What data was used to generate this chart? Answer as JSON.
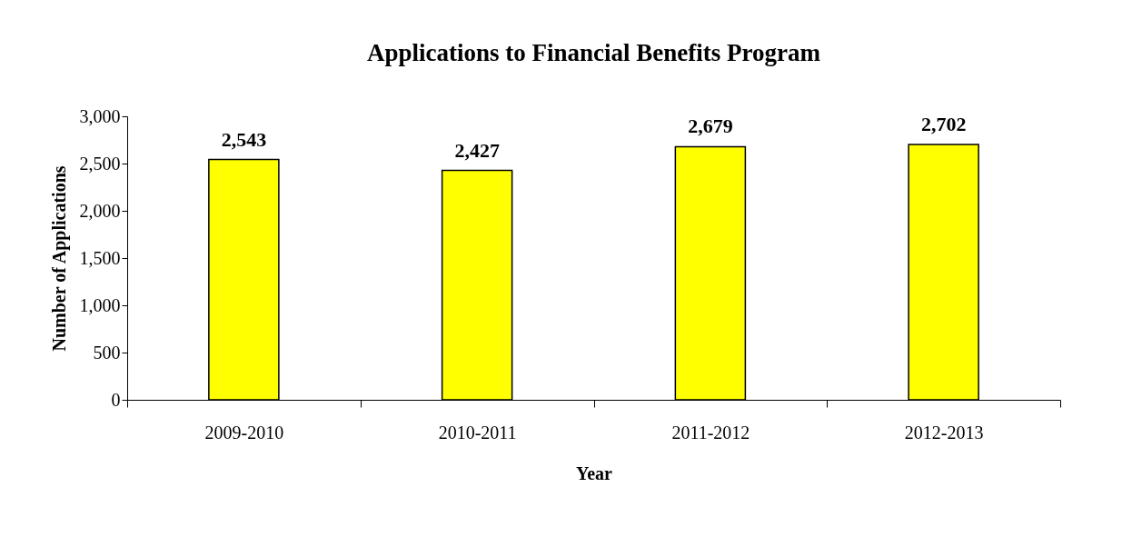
{
  "chart_data": {
    "type": "bar",
    "title": "Applications to Financial Benefits Program",
    "xlabel": "Year",
    "ylabel": "Number of Applications",
    "categories": [
      "2009-2010",
      "2010-2011",
      "2011-2012",
      "2012-2013"
    ],
    "values": [
      2543,
      2427,
      2679,
      2702
    ],
    "color": "#ffff00",
    "value_labels": [
      "2,543",
      "2,427",
      "2,679",
      "2,702"
    ],
    "ylim": [
      0,
      3000
    ],
    "yticks": [
      {
        "value": 0,
        "label": "0"
      },
      {
        "value": 500,
        "label": "500"
      },
      {
        "value": 1000,
        "label": "1,000"
      },
      {
        "value": 1500,
        "label": "1,500"
      },
      {
        "value": 2000,
        "label": "2,000"
      },
      {
        "value": 2500,
        "label": "2,500"
      },
      {
        "value": 3000,
        "label": "3,000"
      }
    ],
    "grid": false
  }
}
